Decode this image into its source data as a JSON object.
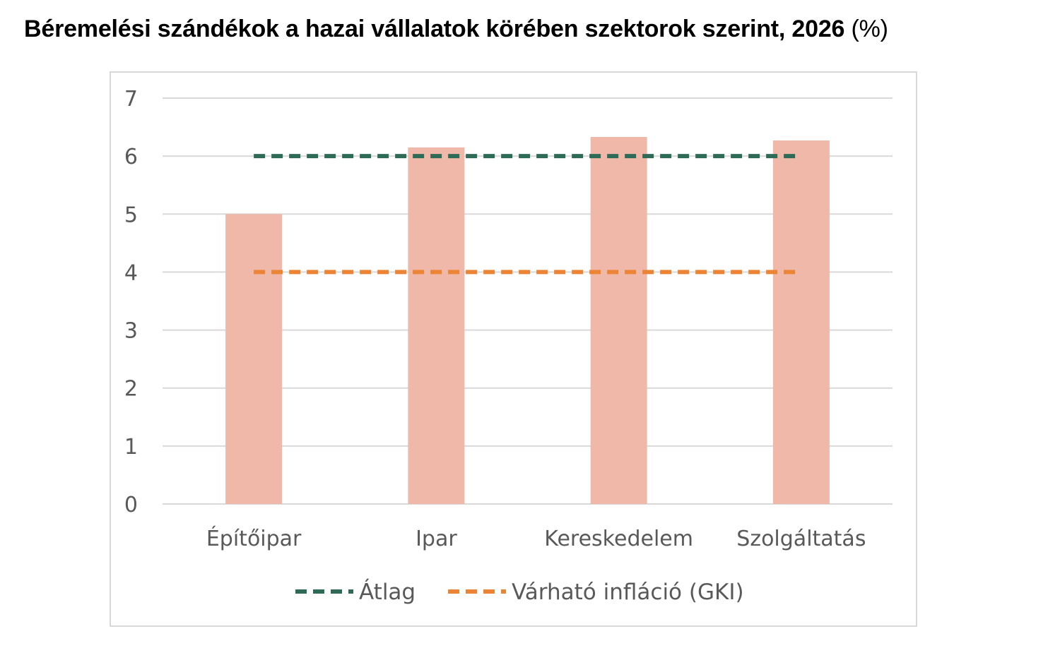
{
  "title": "Béremelési szándékok a hazai vállalatok körében szektorok szerint, 2026",
  "title_unit": "(%)",
  "colors": {
    "bar": "#efb8a8",
    "average_line": "#2e6b56",
    "inflation_line": "#ec8435",
    "grid": "#d9d9d9",
    "text": "#595959"
  },
  "chart_data": {
    "type": "bar",
    "title": "Béremelési szándékok a hazai vállalatok körében szektorok szerint, 2026 (%)",
    "categories": [
      "Építőipar",
      "Ipar",
      "Kereskedelem",
      "Szolgáltatás"
    ],
    "values": [
      5.0,
      6.15,
      6.33,
      6.27
    ],
    "reference_lines": [
      {
        "name": "Átlag",
        "value": 6.0,
        "style": "dashed",
        "color": "#2e6b56"
      },
      {
        "name": "Várható infláció (GKI)",
        "value": 4.0,
        "style": "dashed",
        "color": "#ec8435"
      }
    ],
    "ylim": [
      0,
      7
    ],
    "yticks": [
      "0",
      "1",
      "2",
      "3",
      "4",
      "5",
      "6",
      "7"
    ],
    "grid": true,
    "legend_position": "bottom"
  }
}
